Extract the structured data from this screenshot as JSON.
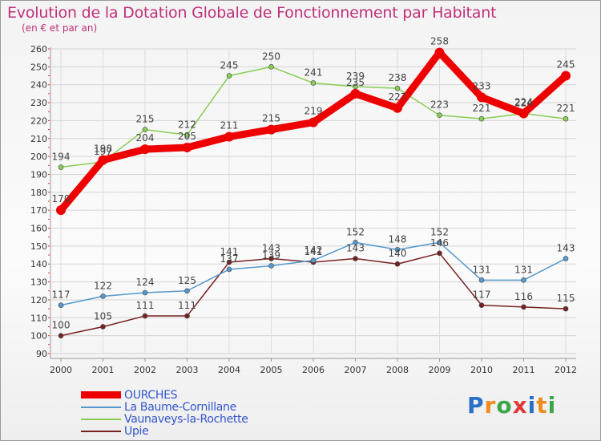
{
  "header": {
    "title": "Evolution de la Dotation Globale de Fonctionnement par Habitant",
    "subtitle": "(en € et par an)"
  },
  "chart_data": {
    "type": "line",
    "title": "Evolution de la Dotation Globale de Fonctionnement par Habitant",
    "subtitle": "(en € et par an)",
    "x": [
      "2000",
      "2001",
      "2002",
      "2003",
      "2004",
      "2005",
      "2006",
      "2007",
      "2008",
      "2009",
      "2010",
      "2011",
      "2012"
    ],
    "ylim": [
      90,
      260
    ],
    "yticks": [
      90,
      100,
      110,
      120,
      130,
      140,
      150,
      160,
      170,
      180,
      190,
      200,
      210,
      220,
      230,
      240,
      250,
      260
    ],
    "grid": true,
    "legend_position": "bottom-left",
    "series": [
      {
        "name": "OURCHES",
        "color": "#ee0000",
        "values": [
          170,
          198,
          204,
          205,
          211,
          215,
          219,
          235,
          227,
          258,
          233,
          224,
          245
        ]
      },
      {
        "name": "La Baume-Cornillane",
        "color": "#5599cc",
        "values": [
          117,
          122,
          124,
          125,
          137,
          139,
          142,
          152,
          148,
          152,
          131,
          131,
          143
        ]
      },
      {
        "name": "Vaunaveys-la-Rochette",
        "color": "#88cc55",
        "values": [
          194,
          197,
          215,
          212,
          245,
          250,
          241,
          239,
          238,
          223,
          221,
          224,
          221
        ]
      },
      {
        "name": "Upie",
        "color": "#772222",
        "values": [
          100,
          105,
          111,
          111,
          141,
          143,
          141,
          143,
          140,
          146,
          117,
          116,
          115
        ]
      }
    ]
  },
  "logo": {
    "text": "Proxiti",
    "colors": [
      "#2a6fc8",
      "#f08c1e",
      "#3aa64a",
      "#e23a3a",
      "#2a6fc8",
      "#f08c1e",
      "#3aa64a"
    ]
  }
}
